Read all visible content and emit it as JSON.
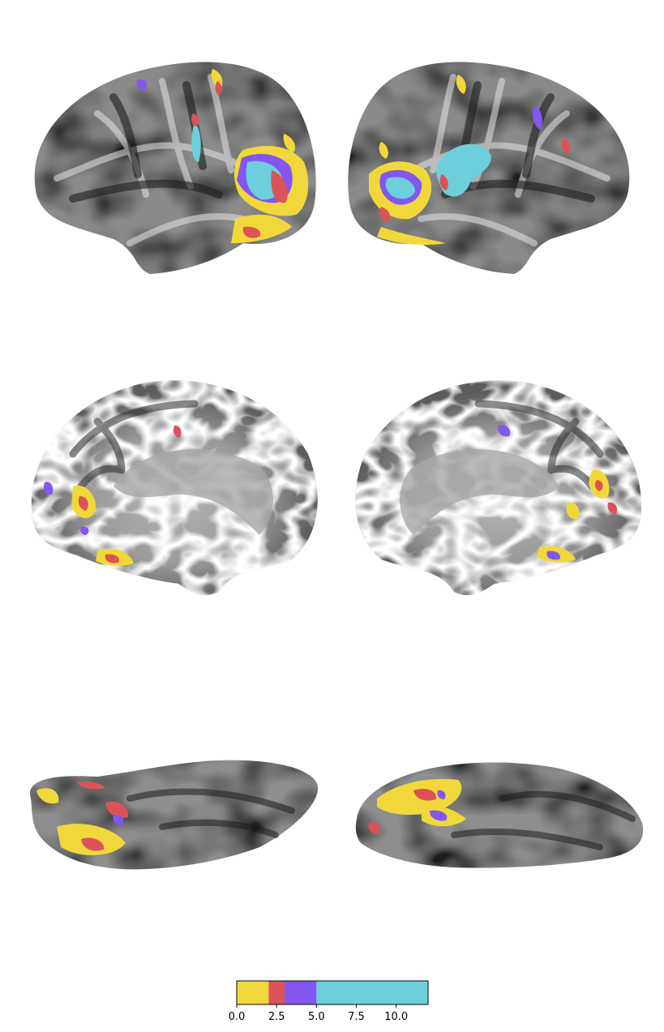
{
  "figure": {
    "kind": "brain surface maps",
    "views": [
      {
        "id": "left-lateral",
        "hemisphere": "left",
        "view": "lateral"
      },
      {
        "id": "right-lateral",
        "hemisphere": "right",
        "view": "lateral"
      },
      {
        "id": "left-medial",
        "hemisphere": "left",
        "view": "medial"
      },
      {
        "id": "right-medial",
        "hemisphere": "right",
        "view": "medial"
      },
      {
        "id": "left-ventral",
        "hemisphere": "left",
        "view": "ventral"
      },
      {
        "id": "right-ventral",
        "hemisphere": "right",
        "view": "ventral"
      }
    ]
  },
  "colorbar": {
    "min": 0,
    "max": 12,
    "segments": [
      {
        "from": 0,
        "to": 2,
        "color": "#f1d83a"
      },
      {
        "from": 2,
        "to": 3,
        "color": "#dc5357"
      },
      {
        "from": 3,
        "to": 5,
        "color": "#8357ef"
      },
      {
        "from": 5,
        "to": 12,
        "color": "#6dcfdc"
      }
    ],
    "ticks": [
      {
        "value": 0,
        "label": "0.0"
      },
      {
        "value": 2.5,
        "label": "2.5"
      },
      {
        "value": 5,
        "label": "5.0"
      },
      {
        "value": 7.5,
        "label": "7.5"
      },
      {
        "value": 10,
        "label": "10.0"
      }
    ]
  },
  "colors": {
    "surface_dark": "#2b2b2b",
    "surface_mid": "#8c8c8c",
    "surface_light": "#d9d9d9",
    "yellow": "#f1d83a",
    "red": "#dc5357",
    "purple": "#8357ef",
    "cyan": "#6dcfdc"
  }
}
